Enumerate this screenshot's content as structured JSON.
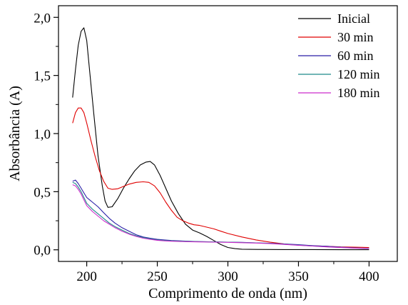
{
  "chart_data": {
    "type": "line",
    "title": "",
    "xlabel": "Comprimento de onda (nm)",
    "ylabel": "Absorbância (A)",
    "xlim": [
      180,
      420
    ],
    "ylim": [
      -0.1,
      2.1
    ],
    "x_ticks": [
      200,
      250,
      300,
      350,
      400
    ],
    "x_tick_labels": [
      "200",
      "250",
      "300",
      "350",
      "400"
    ],
    "y_ticks": [
      0.0,
      0.5,
      1.0,
      1.5,
      2.0
    ],
    "y_tick_labels": [
      "0,0",
      "0,5",
      "1,0",
      "1,5",
      "2,0"
    ],
    "legend_placement": "top-right",
    "grid": false,
    "series": [
      {
        "name": "Inicial",
        "color": "#000000",
        "points": [
          [
            190,
            1.31
          ],
          [
            192,
            1.55
          ],
          [
            194,
            1.76
          ],
          [
            196,
            1.88
          ],
          [
            198,
            1.91
          ],
          [
            200,
            1.8
          ],
          [
            202,
            1.55
          ],
          [
            205,
            1.17
          ],
          [
            208,
            0.81
          ],
          [
            211,
            0.55
          ],
          [
            213,
            0.42
          ],
          [
            215,
            0.365
          ],
          [
            218,
            0.37
          ],
          [
            222,
            0.44
          ],
          [
            226,
            0.53
          ],
          [
            230,
            0.61
          ],
          [
            234,
            0.68
          ],
          [
            238,
            0.73
          ],
          [
            242,
            0.755
          ],
          [
            245,
            0.76
          ],
          [
            248,
            0.73
          ],
          [
            252,
            0.64
          ],
          [
            256,
            0.53
          ],
          [
            260,
            0.42
          ],
          [
            265,
            0.31
          ],
          [
            270,
            0.22
          ],
          [
            275,
            0.17
          ],
          [
            280,
            0.145
          ],
          [
            285,
            0.115
          ],
          [
            290,
            0.08
          ],
          [
            295,
            0.045
          ],
          [
            300,
            0.02
          ],
          [
            305,
            0.01
          ],
          [
            310,
            0.005
          ],
          [
            320,
            0.003
          ],
          [
            340,
            0.002
          ],
          [
            360,
            0.002
          ],
          [
            380,
            0.001
          ],
          [
            400,
            0.001
          ]
        ]
      },
      {
        "name": "30 min",
        "color": "#e00000",
        "points": [
          [
            190,
            1.09
          ],
          [
            192,
            1.18
          ],
          [
            194,
            1.22
          ],
          [
            196,
            1.22
          ],
          [
            198,
            1.18
          ],
          [
            200,
            1.09
          ],
          [
            203,
            0.94
          ],
          [
            206,
            0.8
          ],
          [
            209,
            0.68
          ],
          [
            212,
            0.59
          ],
          [
            215,
            0.53
          ],
          [
            218,
            0.52
          ],
          [
            222,
            0.525
          ],
          [
            226,
            0.545
          ],
          [
            230,
            0.565
          ],
          [
            235,
            0.58
          ],
          [
            240,
            0.585
          ],
          [
            244,
            0.58
          ],
          [
            248,
            0.55
          ],
          [
            252,
            0.49
          ],
          [
            256,
            0.41
          ],
          [
            260,
            0.34
          ],
          [
            264,
            0.28
          ],
          [
            268,
            0.25
          ],
          [
            272,
            0.23
          ],
          [
            276,
            0.215
          ],
          [
            280,
            0.21
          ],
          [
            285,
            0.195
          ],
          [
            290,
            0.18
          ],
          [
            295,
            0.16
          ],
          [
            300,
            0.14
          ],
          [
            310,
            0.11
          ],
          [
            320,
            0.085
          ],
          [
            330,
            0.065
          ],
          [
            340,
            0.05
          ],
          [
            350,
            0.04
          ],
          [
            360,
            0.035
          ],
          [
            370,
            0.03
          ],
          [
            380,
            0.025
          ],
          [
            390,
            0.022
          ],
          [
            400,
            0.02
          ]
        ]
      },
      {
        "name": "60 min",
        "color": "#2a1fa8",
        "points": [
          [
            190,
            0.59
          ],
          [
            192,
            0.6
          ],
          [
            194,
            0.57
          ],
          [
            196,
            0.53
          ],
          [
            198,
            0.49
          ],
          [
            200,
            0.45
          ],
          [
            204,
            0.41
          ],
          [
            208,
            0.37
          ],
          [
            212,
            0.32
          ],
          [
            216,
            0.27
          ],
          [
            220,
            0.23
          ],
          [
            225,
            0.19
          ],
          [
            230,
            0.16
          ],
          [
            235,
            0.13
          ],
          [
            240,
            0.11
          ],
          [
            245,
            0.1
          ],
          [
            250,
            0.09
          ],
          [
            255,
            0.085
          ],
          [
            260,
            0.08
          ],
          [
            270,
            0.075
          ],
          [
            280,
            0.07
          ],
          [
            290,
            0.068
          ],
          [
            300,
            0.066
          ],
          [
            310,
            0.064
          ],
          [
            320,
            0.06
          ],
          [
            330,
            0.056
          ],
          [
            340,
            0.05
          ],
          [
            350,
            0.044
          ],
          [
            360,
            0.036
          ],
          [
            370,
            0.03
          ],
          [
            380,
            0.022
          ],
          [
            390,
            0.016
          ],
          [
            400,
            0.012
          ]
        ]
      },
      {
        "name": "120 min",
        "color": "#1e8a8a",
        "points": [
          [
            190,
            0.58
          ],
          [
            192,
            0.57
          ],
          [
            194,
            0.54
          ],
          [
            196,
            0.5
          ],
          [
            198,
            0.45
          ],
          [
            200,
            0.4
          ],
          [
            204,
            0.35
          ],
          [
            208,
            0.31
          ],
          [
            212,
            0.27
          ],
          [
            216,
            0.23
          ],
          [
            220,
            0.2
          ],
          [
            225,
            0.17
          ],
          [
            230,
            0.14
          ],
          [
            235,
            0.12
          ],
          [
            240,
            0.105
          ],
          [
            245,
            0.095
          ],
          [
            250,
            0.085
          ],
          [
            255,
            0.08
          ],
          [
            260,
            0.077
          ],
          [
            270,
            0.073
          ],
          [
            280,
            0.07
          ],
          [
            290,
            0.068
          ],
          [
            300,
            0.066
          ],
          [
            310,
            0.063
          ],
          [
            320,
            0.06
          ],
          [
            330,
            0.055
          ],
          [
            340,
            0.048
          ],
          [
            350,
            0.04
          ],
          [
            360,
            0.033
          ],
          [
            370,
            0.026
          ],
          [
            380,
            0.02
          ],
          [
            390,
            0.015
          ],
          [
            400,
            0.011
          ]
        ]
      },
      {
        "name": "180 min",
        "color": "#cc2ccc",
        "points": [
          [
            190,
            0.56
          ],
          [
            192,
            0.55
          ],
          [
            194,
            0.52
          ],
          [
            196,
            0.48
          ],
          [
            198,
            0.43
          ],
          [
            200,
            0.38
          ],
          [
            204,
            0.33
          ],
          [
            208,
            0.29
          ],
          [
            212,
            0.25
          ],
          [
            216,
            0.22
          ],
          [
            220,
            0.19
          ],
          [
            225,
            0.16
          ],
          [
            230,
            0.135
          ],
          [
            235,
            0.115
          ],
          [
            240,
            0.1
          ],
          [
            245,
            0.09
          ],
          [
            250,
            0.082
          ],
          [
            255,
            0.077
          ],
          [
            260,
            0.074
          ],
          [
            270,
            0.07
          ],
          [
            280,
            0.068
          ],
          [
            290,
            0.066
          ],
          [
            300,
            0.064
          ],
          [
            310,
            0.061
          ],
          [
            320,
            0.058
          ],
          [
            330,
            0.053
          ],
          [
            340,
            0.046
          ],
          [
            350,
            0.039
          ],
          [
            360,
            0.032
          ],
          [
            370,
            0.025
          ],
          [
            380,
            0.019
          ],
          [
            390,
            0.014
          ],
          [
            400,
            0.01
          ]
        ]
      }
    ]
  }
}
